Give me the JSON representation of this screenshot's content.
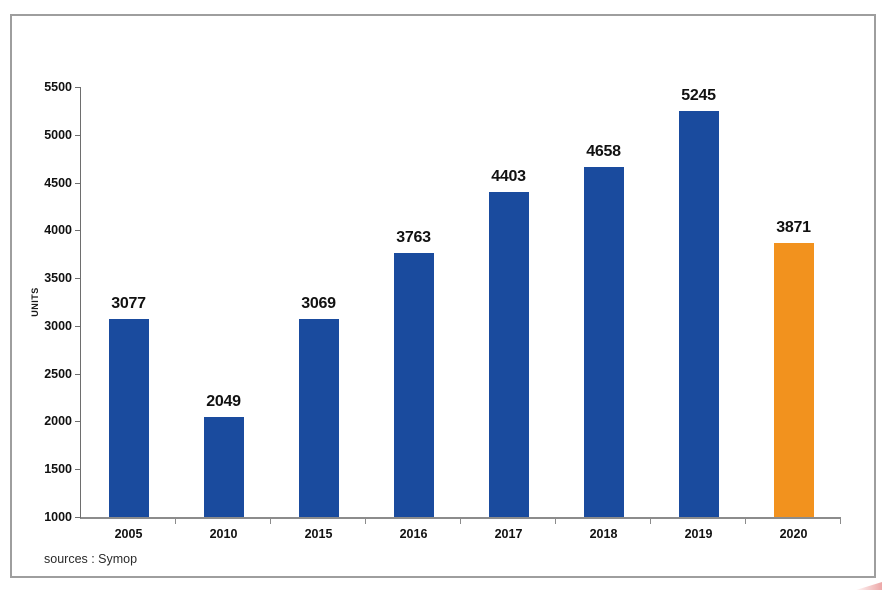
{
  "chart_data": {
    "type": "bar",
    "title": "",
    "xlabel": "",
    "ylabel": "UNITS",
    "categories": [
      "2005",
      "2010",
      "2015",
      "2016",
      "2017",
      "2018",
      "2019",
      "2020"
    ],
    "values": [
      3077,
      2049,
      3069,
      3763,
      4403,
      4658,
      5245,
      3871
    ],
    "bar_colors": [
      "#1a4b9e",
      "#1a4b9e",
      "#1a4b9e",
      "#1a4b9e",
      "#1a4b9e",
      "#1a4b9e",
      "#1a4b9e",
      "#f2921e"
    ],
    "ylim": [
      1000,
      5500
    ],
    "yticks": [
      5500,
      5000,
      4500,
      4000,
      3500,
      3000,
      2500,
      2000,
      1500,
      1000
    ],
    "grid": false,
    "legend": false,
    "data_labels_shown": true,
    "source": "sources : Symop",
    "colors": {
      "default_bar": "#1a4b9e",
      "highlight_bar": "#f2921e",
      "axis": "#8c8c8c",
      "label_text": "#111111",
      "frame_border": "#9e9e9e"
    }
  }
}
